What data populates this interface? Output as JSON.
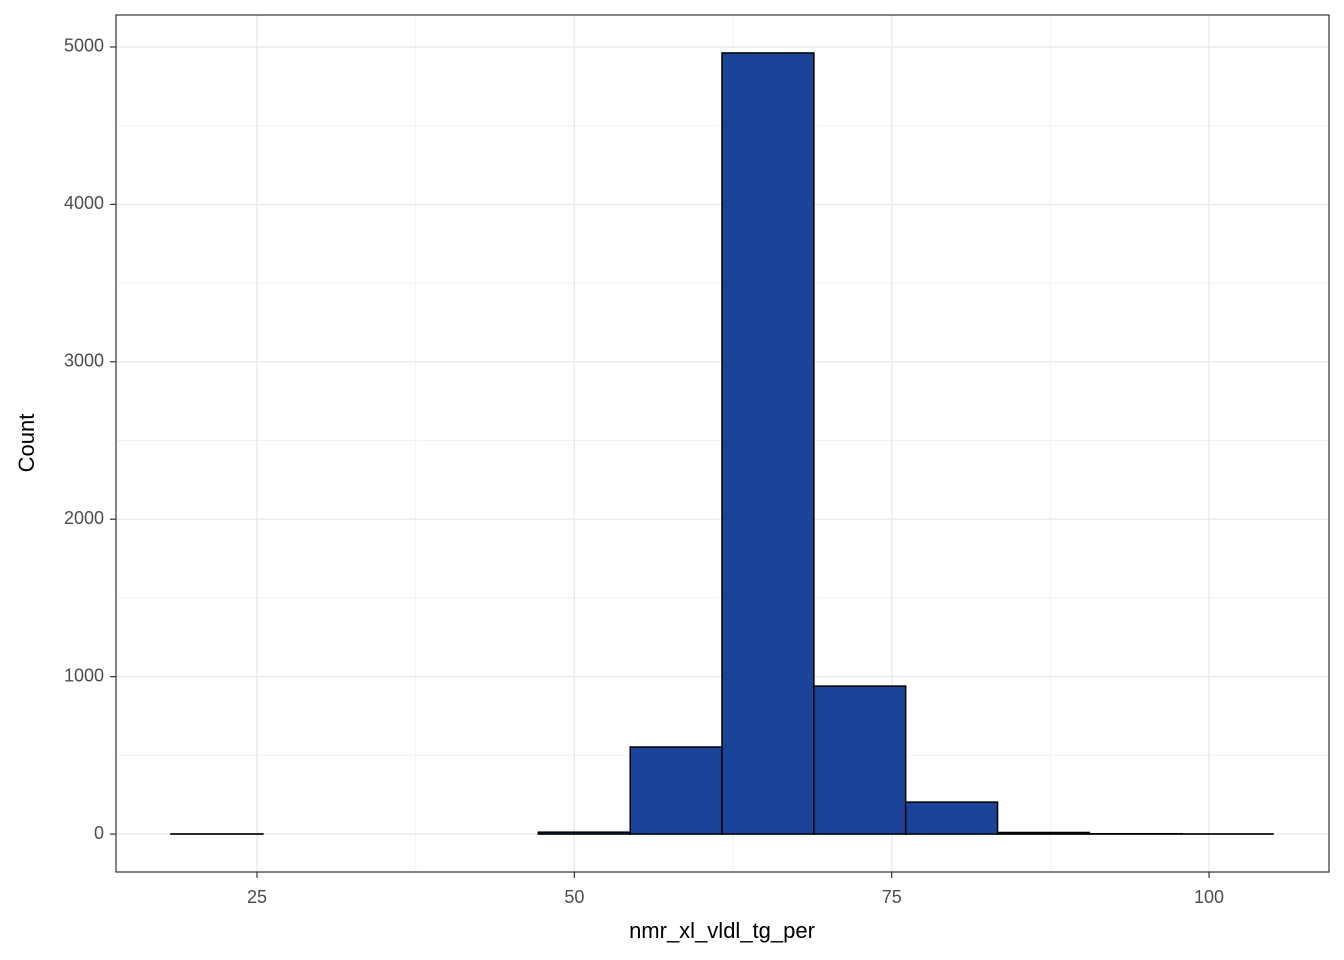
{
  "chart_data": {
    "type": "histogram",
    "x_label": "nmr_xl_vldl_tg_per",
    "y_label": "Count",
    "bins": [
      18.22,
      25.46,
      32.69,
      39.93,
      47.16,
      54.4,
      61.63,
      68.87,
      76.1,
      83.34,
      90.57,
      97.81,
      105.04
    ],
    "counts": [
      1,
      0,
      0,
      0,
      12,
      553,
      4962,
      940,
      203,
      10,
      2,
      1
    ],
    "color": "#19449a",
    "edge_color": "#000000",
    "xlim": [
      13.89,
      109.45
    ],
    "ylim": [
      -241,
      5203
    ],
    "xticks": [
      25,
      50,
      75,
      100
    ],
    "yticks": [
      0,
      1000,
      2000,
      3000,
      4000,
      5000
    ],
    "x_minor_ticks": [
      37.5,
      62.5,
      87.5
    ],
    "y_minor_ticks": [
      500,
      1500,
      2500,
      3500,
      4500
    ],
    "grid": true
  }
}
